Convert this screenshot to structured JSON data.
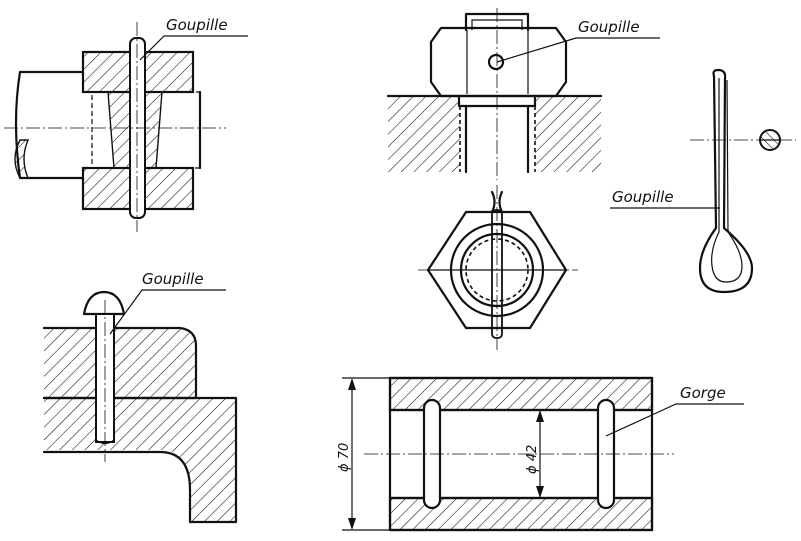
{
  "labels": {
    "goupille_1": "Goupille",
    "goupille_2": "Goupille",
    "goupille_3": "Goupille",
    "goupille_4": "Goupille",
    "gorge": "Gorge"
  },
  "dimensions": {
    "outer_diameter": "ϕ 70",
    "inner_diameter": "ϕ 42"
  },
  "colors": {
    "ink": "#111111",
    "paper": "#ffffff"
  }
}
